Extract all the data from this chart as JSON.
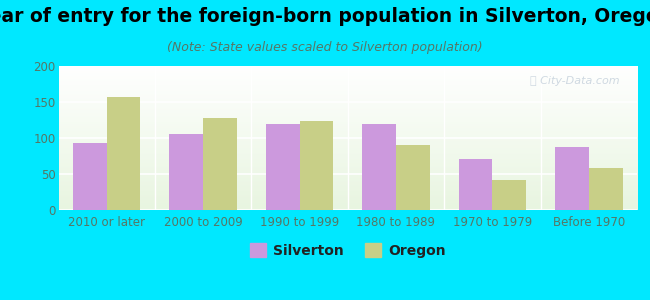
{
  "title": "Year of entry for the foreign-born population in Silverton, Oregon",
  "subtitle": "(Note: State values scaled to Silverton population)",
  "categories": [
    "2010 or later",
    "2000 to 2009",
    "1990 to 1999",
    "1980 to 1989",
    "1970 to 1979",
    "Before 1970"
  ],
  "silverton_values": [
    93,
    106,
    119,
    119,
    71,
    88
  ],
  "oregon_values": [
    157,
    128,
    123,
    90,
    41,
    59
  ],
  "silverton_color": "#cc99dd",
  "oregon_color": "#c8cf87",
  "background_outer": "#00e8ff",
  "background_inner_start": "#e8f5e0",
  "background_inner_end": "#ffffff",
  "ylim": [
    0,
    200
  ],
  "yticks": [
    0,
    50,
    100,
    150,
    200
  ],
  "bar_width": 0.35,
  "title_fontsize": 13.5,
  "subtitle_fontsize": 9,
  "tick_fontsize": 8.5,
  "legend_fontsize": 10,
  "watermark_text": "ⓘ City-Data.com",
  "watermark_color": "#aabbcc",
  "watermark_alpha": 0.55,
  "tick_color": "#557766",
  "label_color": "#557766"
}
